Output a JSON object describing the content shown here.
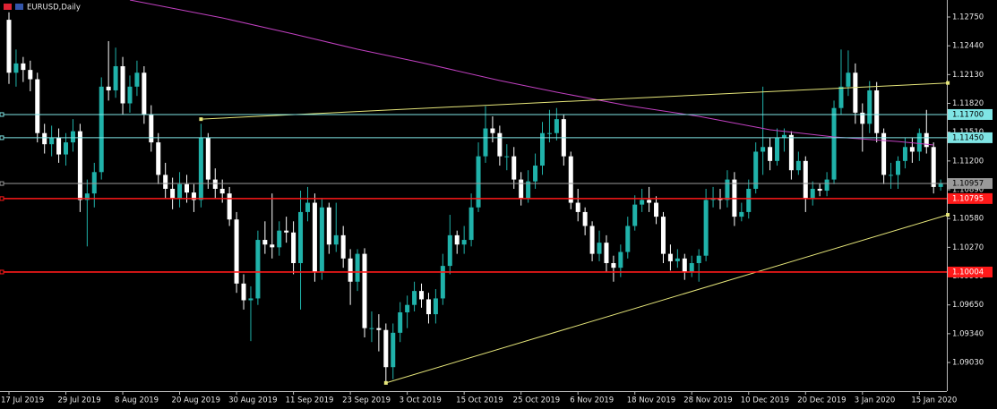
{
  "chart_data": {
    "type": "candlestick",
    "title": "EURUSD,Daily",
    "up_color": "#20b2aa",
    "down_color": "#ffffff",
    "ylim": [
      1.08722,
      1.12933
    ],
    "yticks": [
      {
        "value": 1.1275,
        "label": "1.12750"
      },
      {
        "value": 1.1244,
        "label": "1.12440"
      },
      {
        "value": 1.1213,
        "label": "1.12130"
      },
      {
        "value": 1.1182,
        "label": "1.11820"
      },
      {
        "value": 1.1151,
        "label": "1.11510"
      },
      {
        "value": 1.112,
        "label": "1.11200"
      },
      {
        "value": 1.1089,
        "label": "1.10890"
      },
      {
        "value": 1.1058,
        "label": "1.10580"
      },
      {
        "value": 1.1027,
        "label": "1.10270"
      },
      {
        "value": 1.0996,
        "label": "1.09960"
      },
      {
        "value": 1.0965,
        "label": "1.09650"
      },
      {
        "value": 1.0934,
        "label": "1.09340"
      },
      {
        "value": 1.0903,
        "label": "1.09030"
      }
    ],
    "categories": [
      "17 Jul 2019",
      null,
      null,
      null,
      null,
      null,
      null,
      null,
      "29 Jul 2019",
      null,
      null,
      null,
      null,
      null,
      null,
      null,
      "8 Aug 2019",
      null,
      null,
      null,
      null,
      null,
      null,
      null,
      "20 Aug 2019",
      null,
      null,
      null,
      null,
      null,
      null,
      null,
      "30 Aug 2019",
      null,
      null,
      null,
      null,
      null,
      null,
      null,
      "11 Sep 2019",
      null,
      null,
      null,
      null,
      null,
      null,
      null,
      "23 Sep 2019",
      null,
      null,
      null,
      null,
      null,
      null,
      null,
      "3 Oct 2019",
      null,
      null,
      null,
      null,
      null,
      null,
      null,
      "15 Oct 2019",
      null,
      null,
      null,
      null,
      null,
      null,
      null,
      "25 Oct 2019",
      null,
      null,
      null,
      null,
      null,
      null,
      null,
      "6 Nov 2019",
      null,
      null,
      null,
      null,
      null,
      null,
      null,
      "18 Nov 2019",
      null,
      null,
      null,
      null,
      null,
      null,
      null,
      "28 Nov 2019",
      null,
      null,
      null,
      null,
      null,
      null,
      null,
      "10 Dec 2019",
      null,
      null,
      null,
      null,
      null,
      null,
      null,
      "20 Dec 2019",
      null,
      null,
      null,
      null,
      null,
      null,
      null,
      "3 Jan 2020",
      null,
      null,
      null,
      null,
      null,
      null,
      null,
      "15 Jan 2020",
      null,
      null,
      null
    ],
    "ohlc": [
      [
        1.1272,
        1.128,
        1.1203,
        1.1215
      ],
      [
        1.1215,
        1.124,
        1.12,
        1.1225
      ],
      [
        1.1225,
        1.1232,
        1.1205,
        1.1218
      ],
      [
        1.1218,
        1.1228,
        1.1195,
        1.1208
      ],
      [
        1.1208,
        1.1215,
        1.114,
        1.115
      ],
      [
        1.115,
        1.116,
        1.1128,
        1.1138
      ],
      [
        1.1138,
        1.1158,
        1.1125,
        1.1145
      ],
      [
        1.1145,
        1.1155,
        1.1118,
        1.1127
      ],
      [
        1.1127,
        1.115,
        1.1115,
        1.114
      ],
      [
        1.114,
        1.1165,
        1.113,
        1.1152
      ],
      [
        1.1152,
        1.116,
        1.1065,
        1.1078
      ],
      [
        1.1078,
        1.11,
        1.1028,
        1.1085
      ],
      [
        1.1085,
        1.1118,
        1.107,
        1.1108
      ],
      [
        1.1108,
        1.121,
        1.11,
        1.12
      ],
      [
        1.12,
        1.1249,
        1.1185,
        1.1196
      ],
      [
        1.1196,
        1.1242,
        1.1188,
        1.1222
      ],
      [
        1.1222,
        1.1232,
        1.117,
        1.1182
      ],
      [
        1.1182,
        1.1212,
        1.1172,
        1.12
      ],
      [
        1.12,
        1.1228,
        1.119,
        1.1215
      ],
      [
        1.1215,
        1.1222,
        1.116,
        1.117
      ],
      [
        1.117,
        1.118,
        1.113,
        1.114
      ],
      [
        1.114,
        1.115,
        1.1095,
        1.1105
      ],
      [
        1.1105,
        1.1118,
        1.108,
        1.109
      ],
      [
        1.109,
        1.1102,
        1.1068,
        1.108
      ],
      [
        1.108,
        1.1108,
        1.107,
        1.1095
      ],
      [
        1.1095,
        1.1105,
        1.1075,
        1.1086
      ],
      [
        1.1086,
        1.1095,
        1.1065,
        1.1078
      ],
      [
        1.1078,
        1.116,
        1.107,
        1.1145
      ],
      [
        1.1145,
        1.115,
        1.109,
        1.11
      ],
      [
        1.11,
        1.1112,
        1.108,
        1.109
      ],
      [
        1.109,
        1.11,
        1.1075,
        1.1085
      ],
      [
        1.1085,
        1.1092,
        1.105,
        1.1057
      ],
      [
        1.1057,
        1.1065,
        1.0978,
        1.0988
      ],
      [
        1.0988,
        1.0998,
        1.096,
        1.097
      ],
      [
        1.097,
        1.0985,
        1.0926,
        1.0972
      ],
      [
        1.0972,
        1.1045,
        1.0965,
        1.1035
      ],
      [
        1.1035,
        1.1055,
        1.102,
        1.103
      ],
      [
        1.103,
        1.1085,
        1.1015,
        1.1027
      ],
      [
        1.1027,
        1.1055,
        1.1018,
        1.1045
      ],
      [
        1.1045,
        1.106,
        1.1032,
        1.1043
      ],
      [
        1.1043,
        1.1055,
        1.0998,
        1.101
      ],
      [
        1.101,
        1.1088,
        1.096,
        1.1065
      ],
      [
        1.1065,
        1.1092,
        1.1055,
        1.1075
      ],
      [
        1.1075,
        1.1085,
        1.099,
        1.1
      ],
      [
        1.1,
        1.108,
        1.0992,
        1.107
      ],
      [
        1.107,
        1.1075,
        1.102,
        1.103
      ],
      [
        1.103,
        1.1075,
        1.1022,
        1.104
      ],
      [
        1.104,
        1.105,
        1.1005,
        1.1015
      ],
      [
        1.1015,
        1.1025,
        1.0965,
        1.099
      ],
      [
        1.099,
        1.1025,
        1.098,
        1.102
      ],
      [
        1.102,
        1.1026,
        1.093,
        1.094
      ],
      [
        1.094,
        1.0958,
        1.0925,
        1.094
      ],
      [
        1.094,
        1.0955,
        1.0915,
        1.0938
      ],
      [
        1.0938,
        1.0945,
        1.088,
        1.0898
      ],
      [
        1.0898,
        1.0945,
        1.0885,
        1.0935
      ],
      [
        1.0935,
        1.0968,
        1.0925,
        1.0957
      ],
      [
        1.0957,
        1.0975,
        1.094,
        1.0965
      ],
      [
        1.0965,
        1.099,
        1.0958,
        1.098
      ],
      [
        1.098,
        1.0988,
        1.0962,
        1.0971
      ],
      [
        1.0971,
        1.0978,
        1.0945,
        1.0955
      ],
      [
        1.0955,
        1.0982,
        1.0945,
        1.0972
      ],
      [
        1.0972,
        1.102,
        1.0965,
        1.1007
      ],
      [
        1.1007,
        1.1062,
        1.0998,
        1.104
      ],
      [
        1.104,
        1.1045,
        1.102,
        1.103
      ],
      [
        1.103,
        1.105,
        1.102,
        1.1035
      ],
      [
        1.1035,
        1.1085,
        1.1028,
        1.107
      ],
      [
        1.107,
        1.114,
        1.1065,
        1.1125
      ],
      [
        1.1125,
        1.1179,
        1.1118,
        1.1155
      ],
      [
        1.1155,
        1.1168,
        1.114,
        1.115
      ],
      [
        1.115,
        1.1158,
        1.1115,
        1.1125
      ],
      [
        1.1125,
        1.1138,
        1.111,
        1.1125
      ],
      [
        1.1125,
        1.1135,
        1.109,
        1.11
      ],
      [
        1.11,
        1.1108,
        1.1072,
        1.108
      ],
      [
        1.108,
        1.111,
        1.1075,
        1.1098
      ],
      [
        1.1098,
        1.1128,
        1.109,
        1.1115
      ],
      [
        1.1115,
        1.1162,
        1.1105,
        1.115
      ],
      [
        1.115,
        1.1175,
        1.114,
        1.115
      ],
      [
        1.115,
        1.1177,
        1.1142,
        1.1165
      ],
      [
        1.1165,
        1.117,
        1.1115,
        1.1125
      ],
      [
        1.1125,
        1.113,
        1.1068,
        1.1075
      ],
      [
        1.1075,
        1.109,
        1.1055,
        1.1065
      ],
      [
        1.1065,
        1.107,
        1.104,
        1.105
      ],
      [
        1.105,
        1.1055,
        1.1012,
        1.102
      ],
      [
        1.102,
        1.1045,
        1.1012,
        1.1032
      ],
      [
        1.1032,
        1.104,
        1.1,
        1.101
      ],
      [
        1.101,
        1.1018,
        1.099,
        1.1005
      ],
      [
        1.1005,
        1.103,
        1.0995,
        1.1022
      ],
      [
        1.1022,
        1.106,
        1.1015,
        1.105
      ],
      [
        1.105,
        1.1083,
        1.1045,
        1.1073
      ],
      [
        1.1073,
        1.109,
        1.1065,
        1.1078
      ],
      [
        1.1078,
        1.1092,
        1.1065,
        1.1075
      ],
      [
        1.1075,
        1.1082,
        1.1052,
        1.106
      ],
      [
        1.106,
        1.1065,
        1.101,
        1.102
      ],
      [
        1.102,
        1.103,
        1.1002,
        1.1012
      ],
      [
        1.1012,
        1.1025,
        1.1005,
        1.1015
      ],
      [
        1.1015,
        1.102,
        1.0992,
        1.1
      ],
      [
        1.1,
        1.1018,
        1.0995,
        1.101
      ],
      [
        1.101,
        1.1025,
        1.099,
        1.1018
      ],
      [
        1.1018,
        1.109,
        1.1012,
        1.1078
      ],
      [
        1.1078,
        1.1092,
        1.107,
        1.108
      ],
      [
        1.108,
        1.109,
        1.1068,
        1.1078
      ],
      [
        1.1078,
        1.111,
        1.107,
        1.11
      ],
      [
        1.11,
        1.1108,
        1.105,
        1.106
      ],
      [
        1.106,
        1.1075,
        1.1055,
        1.1065
      ],
      [
        1.1065,
        1.11,
        1.1058,
        1.109
      ],
      [
        1.109,
        1.114,
        1.1085,
        1.113
      ],
      [
        1.113,
        1.12,
        1.1105,
        1.1135
      ],
      [
        1.1135,
        1.1145,
        1.111,
        1.112
      ],
      [
        1.112,
        1.1155,
        1.1115,
        1.1145
      ],
      [
        1.1145,
        1.1155,
        1.113,
        1.1148
      ],
      [
        1.1148,
        1.1152,
        1.11,
        1.111
      ],
      [
        1.111,
        1.113,
        1.1105,
        1.112
      ],
      [
        1.112,
        1.1125,
        1.1065,
        1.108
      ],
      [
        1.108,
        1.1098,
        1.1072,
        1.109
      ],
      [
        1.109,
        1.1096,
        1.1082,
        1.1088
      ],
      [
        1.1088,
        1.1108,
        1.1082,
        1.11
      ],
      [
        1.11,
        1.1185,
        1.1095,
        1.1177
      ],
      [
        1.1177,
        1.124,
        1.117,
        1.12
      ],
      [
        1.12,
        1.1239,
        1.119,
        1.1215
      ],
      [
        1.1215,
        1.1225,
        1.116,
        1.1172
      ],
      [
        1.1172,
        1.1182,
        1.113,
        1.116
      ],
      [
        1.116,
        1.1206,
        1.115,
        1.1196
      ],
      [
        1.1196,
        1.1205,
        1.114,
        1.115
      ],
      [
        1.115,
        1.1155,
        1.1095,
        1.1105
      ],
      [
        1.1105,
        1.1118,
        1.109,
        1.1105
      ],
      [
        1.1105,
        1.1125,
        1.109,
        1.112
      ],
      [
        1.112,
        1.1145,
        1.1112,
        1.1135
      ],
      [
        1.1135,
        1.1145,
        1.1118,
        1.113
      ],
      [
        1.113,
        1.1155,
        1.112,
        1.115
      ],
      [
        1.115,
        1.1175,
        1.1128,
        1.1135
      ],
      [
        1.1135,
        1.114,
        1.1085,
        1.1092
      ],
      [
        1.1092,
        1.11,
        1.1088,
        1.1096
      ]
    ],
    "overlays": [
      {
        "color": "#c040c0",
        "x": [
          17,
          30,
          40,
          49,
          58,
          69,
          77,
          87,
          97,
          107,
          116,
          125,
          130
        ],
        "values": [
          1.12933,
          1.1274,
          1.12567,
          1.12403,
          1.12258,
          1.12066,
          1.1194,
          1.11796,
          1.1168,
          1.11536,
          1.11459,
          1.1141,
          1.11372
        ]
      },
      {
        "color": "#e6e67a",
        "x": [
          27,
          132
        ],
        "values": [
          1.1165,
          1.1204
        ]
      },
      {
        "color": "#e6e67a",
        "x": [
          53,
          132
        ],
        "values": [
          1.0881,
          1.1062
        ]
      }
    ],
    "levels": [
      {
        "value": 1.117,
        "label": "1.11700",
        "color": "#7fe5e5"
      },
      {
        "value": 1.1145,
        "label": "1.11450",
        "color": "#7fe5e5"
      },
      {
        "value": 1.10957,
        "label": "1.10957",
        "color": "#9a9a9a"
      },
      {
        "value": 1.10795,
        "label": "1.10795",
        "color": "#ff1a1a"
      },
      {
        "value": 1.10004,
        "label": "1.10004",
        "color": "#ff1a1a"
      }
    ]
  }
}
